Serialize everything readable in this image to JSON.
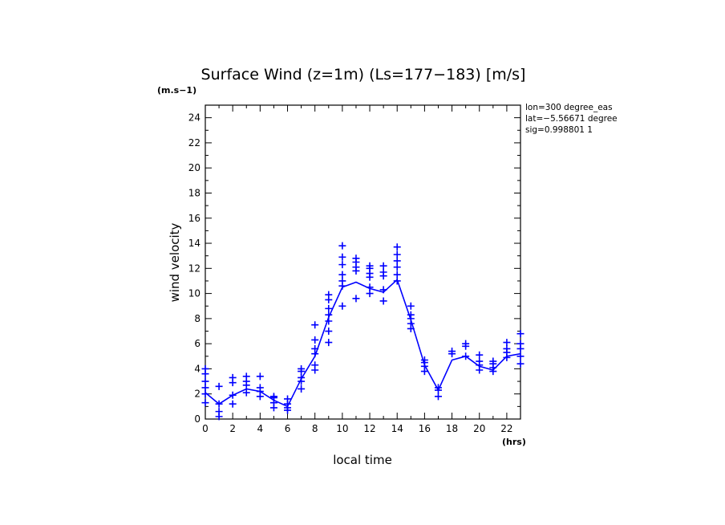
{
  "chart_data": {
    "type": "scatter",
    "title": "Surface Wind (z=1m) (Ls=177−183) [m/s]",
    "ylabel": "wind velocity",
    "yunit": "(m.s−1)",
    "xlabel": "local time",
    "xunit": "(hrs)",
    "xlim": [
      0,
      23
    ],
    "ylim": [
      0,
      25
    ],
    "xticks": [
      0,
      2,
      4,
      6,
      8,
      10,
      12,
      14,
      16,
      18,
      20,
      22
    ],
    "yticks": [
      0,
      2,
      4,
      6,
      8,
      10,
      12,
      14,
      16,
      18,
      20,
      22,
      24
    ],
    "info": [
      "lon=300 degree_eas",
      "lat=−5.56671 degree",
      "sig=0.998801 1"
    ],
    "series_color": "#0000ff",
    "mean_line": {
      "x": [
        0,
        1,
        2,
        3,
        4,
        5,
        6,
        7,
        8,
        9,
        10,
        11,
        12,
        13,
        14,
        15,
        16,
        17,
        18,
        19,
        20,
        21,
        22,
        23
      ],
      "y": [
        2.1,
        1.2,
        1.9,
        2.4,
        2.2,
        1.5,
        1.0,
        3.2,
        5.0,
        8.1,
        10.5,
        10.9,
        10.4,
        10.1,
        11.1,
        7.9,
        4.3,
        2.3,
        4.7,
        5.0,
        4.2,
        3.9,
        5.0,
        5.2
      ]
    },
    "scatter": [
      {
        "x": 0,
        "y": [
          1.3,
          2.0,
          2.5,
          3.0,
          3.6,
          4.0
        ]
      },
      {
        "x": 1,
        "y": [
          0.2,
          0.6,
          1.2,
          2.6
        ]
      },
      {
        "x": 2,
        "y": [
          1.2,
          1.9,
          2.9,
          3.3
        ]
      },
      {
        "x": 3,
        "y": [
          2.1,
          2.7,
          3.0,
          3.4
        ]
      },
      {
        "x": 4,
        "y": [
          1.8,
          2.2,
          2.5,
          3.4
        ]
      },
      {
        "x": 5,
        "y": [
          0.9,
          1.3,
          1.7,
          1.8
        ]
      },
      {
        "x": 6,
        "y": [
          0.7,
          0.9,
          1.2,
          1.6
        ]
      },
      {
        "x": 7,
        "y": [
          2.4,
          3.0,
          3.3,
          3.8,
          4.0
        ]
      },
      {
        "x": 8,
        "y": [
          3.9,
          4.3,
          5.2,
          5.6,
          6.3,
          7.5
        ]
      },
      {
        "x": 9,
        "y": [
          6.1,
          7.0,
          7.8,
          8.3,
          8.8,
          9.5,
          9.9
        ]
      },
      {
        "x": 10,
        "y": [
          9.0,
          10.6,
          11.0,
          11.5,
          12.3,
          12.9,
          13.8
        ]
      },
      {
        "x": 11,
        "y": [
          9.6,
          11.8,
          12.1,
          12.5,
          12.8
        ]
      },
      {
        "x": 12,
        "y": [
          10.0,
          10.5,
          11.3,
          11.6,
          12.0,
          12.2
        ]
      },
      {
        "x": 13,
        "y": [
          9.4,
          10.3,
          11.4,
          11.7,
          12.2
        ]
      },
      {
        "x": 14,
        "y": [
          11.0,
          11.5,
          12.1,
          12.6,
          13.1,
          13.7
        ]
      },
      {
        "x": 15,
        "y": [
          7.2,
          7.6,
          8.0,
          8.3,
          9.0
        ]
      },
      {
        "x": 16,
        "y": [
          3.8,
          4.2,
          4.5,
          4.7
        ]
      },
      {
        "x": 17,
        "y": [
          1.8,
          2.3,
          2.5
        ]
      },
      {
        "x": 18,
        "y": [
          5.2,
          5.4
        ]
      },
      {
        "x": 19,
        "y": [
          5.0,
          5.8,
          6.0
        ]
      },
      {
        "x": 20,
        "y": [
          3.9,
          4.3,
          4.6,
          5.1
        ]
      },
      {
        "x": 21,
        "y": [
          3.8,
          4.1,
          4.4,
          4.6
        ]
      },
      {
        "x": 22,
        "y": [
          4.9,
          5.3,
          5.6,
          6.1
        ]
      },
      {
        "x": 23,
        "y": [
          4.4,
          5.0,
          5.6,
          6.0,
          6.8
        ]
      }
    ]
  }
}
